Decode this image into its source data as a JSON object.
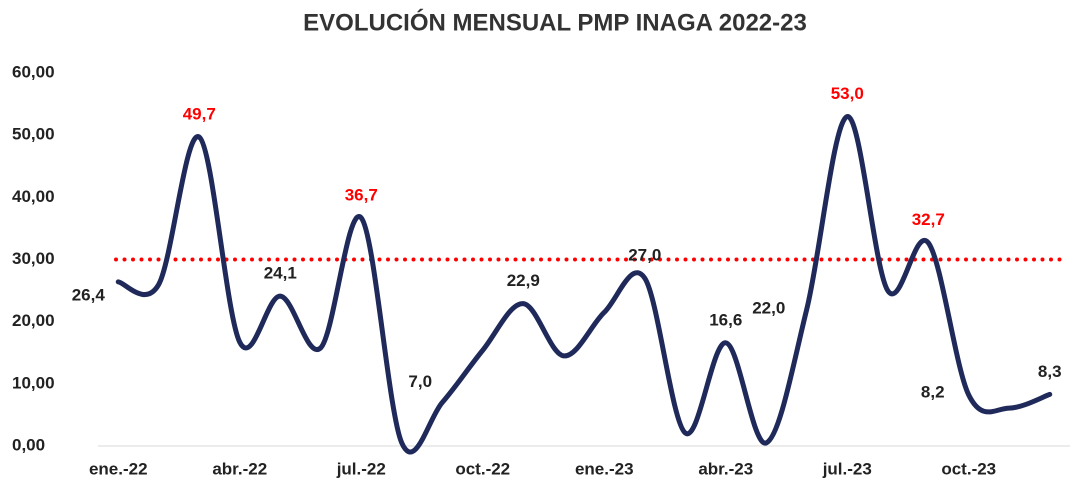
{
  "chart_data": {
    "type": "line",
    "title": "EVOLUCIÓN MENSUAL PMP INAGA 2022-23",
    "categories": [
      "ene.-22",
      null,
      null,
      "abr.-22",
      null,
      null,
      "jul.-22",
      null,
      null,
      "oct.-22",
      null,
      null,
      "ene.-23",
      null,
      null,
      "abr.-23",
      null,
      null,
      "jul.-23",
      null,
      null,
      "oct.-23",
      null,
      null
    ],
    "series": [
      {
        "name": "PMP",
        "color": "#1f2a5a",
        "values": [
          26.4,
          26,
          49.7,
          16.7,
          24.1,
          15.8,
          36.7,
          0.5,
          7.0,
          15.4,
          22.9,
          14.5,
          21.5,
          27.0,
          2.1,
          16.6,
          0.5,
          22.0,
          53.0,
          25,
          32.7,
          8.2,
          6.1,
          8.3
        ],
        "value_labels": [
          "26,4",
          null,
          "49,7",
          null,
          "24,1",
          null,
          "36,7",
          null,
          "7,0",
          null,
          "22,9",
          null,
          null,
          "27,0",
          null,
          "16,6",
          null,
          "22,0",
          "53,0",
          null,
          "32,7",
          "8,2",
          null,
          "8,3"
        ],
        "value_label_colors": [
          "#222222",
          null,
          "#ff0000",
          null,
          "#222222",
          null,
          "#ff0000",
          null,
          "#222222",
          null,
          "#222222",
          null,
          null,
          "#222222",
          null,
          "#222222",
          null,
          "#222222",
          "#ff0000",
          null,
          "#ff0000",
          "#222222",
          null,
          "#222222"
        ]
      }
    ],
    "reference_line": {
      "value": 30,
      "color": "#ff0000"
    },
    "ylim": [
      0,
      60
    ],
    "yticks": [
      {
        "value": 0,
        "label": "0,00"
      },
      {
        "value": 10,
        "label": "10,00"
      },
      {
        "value": 20,
        "label": "20,00"
      },
      {
        "value": 30,
        "label": "30,00"
      },
      {
        "value": 40,
        "label": "40,00"
      },
      {
        "value": 50,
        "label": "50,00"
      },
      {
        "value": 60,
        "label": "60,00"
      }
    ],
    "grid": false
  }
}
